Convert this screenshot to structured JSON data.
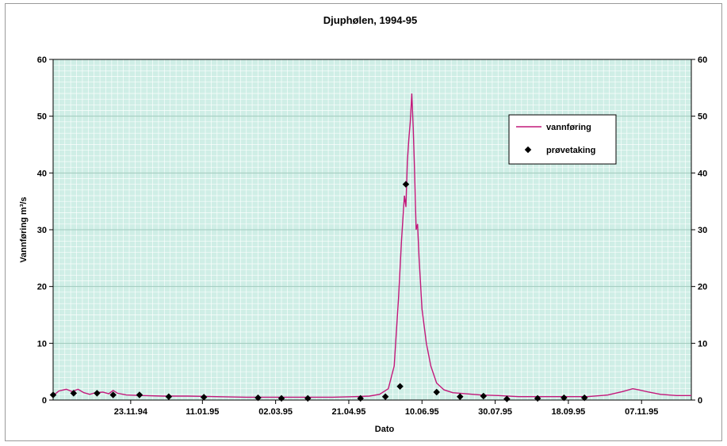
{
  "chart_data": {
    "type": "line",
    "title": "Djuphølen, 1994-95",
    "xlabel": "Dato",
    "ylabel": "Vannføring m³/s",
    "ylim": [
      0,
      60
    ],
    "yticks": [
      "0",
      "10",
      "20",
      "30",
      "40",
      "50",
      "60"
    ],
    "xticks": [
      "23.11.94",
      "11.01.95",
      "02.03.95",
      "21.04.95",
      "10.06.95",
      "30.07.95",
      "18.09.95",
      "07.11.95"
    ],
    "xrange": [
      "01.10.94",
      "11.12.95"
    ],
    "grid": true,
    "legend_position": "top-right",
    "colors": {
      "line": "#c2187a",
      "plot_bg": "#cfeee6",
      "marker": "#000000"
    },
    "series": [
      {
        "name": "vannføring",
        "style": "line",
        "points": [
          [
            "01.10.94",
            0.8
          ],
          [
            "05.10.94",
            1.6
          ],
          [
            "10.10.94",
            1.9
          ],
          [
            "14.10.94",
            1.5
          ],
          [
            "18.10.94",
            1.9
          ],
          [
            "22.10.94",
            1.3
          ],
          [
            "26.10.94",
            1.0
          ],
          [
            "30.10.94",
            1.3
          ],
          [
            "04.11.94",
            1.4
          ],
          [
            "08.11.94",
            1.1
          ],
          [
            "11.11.94",
            1.7
          ],
          [
            "14.11.94",
            1.2
          ],
          [
            "20.11.94",
            0.9
          ],
          [
            "01.12.94",
            0.8
          ],
          [
            "15.12.94",
            0.7
          ],
          [
            "01.01.95",
            0.7
          ],
          [
            "20.01.95",
            0.6
          ],
          [
            "10.02.95",
            0.5
          ],
          [
            "01.03.95",
            0.5
          ],
          [
            "20.03.95",
            0.5
          ],
          [
            "10.04.95",
            0.5
          ],
          [
            "25.04.95",
            0.6
          ],
          [
            "05.05.95",
            0.7
          ],
          [
            "12.05.95",
            1.0
          ],
          [
            "18.05.95",
            2.0
          ],
          [
            "22.05.95",
            6.0
          ],
          [
            "25.05.95",
            18.0
          ],
          [
            "27.05.95",
            28.0
          ],
          [
            "29.05.95",
            36.0
          ],
          [
            "30.05.95",
            34.0
          ],
          [
            "31.05.95",
            42.0
          ],
          [
            "01.06.95",
            46.0
          ],
          [
            "02.06.95",
            49.0
          ],
          [
            "03.06.95",
            54.0
          ],
          [
            "04.06.95",
            48.0
          ],
          [
            "05.06.95",
            40.0
          ],
          [
            "06.06.95",
            30.0
          ],
          [
            "07.06.95",
            31.0
          ],
          [
            "08.06.95",
            25.0
          ],
          [
            "10.06.95",
            16.0
          ],
          [
            "13.06.95",
            10.0
          ],
          [
            "16.06.95",
            6.0
          ],
          [
            "20.06.95",
            3.0
          ],
          [
            "25.06.95",
            1.8
          ],
          [
            "01.07.95",
            1.3
          ],
          [
            "10.07.95",
            1.1
          ],
          [
            "20.07.95",
            0.9
          ],
          [
            "01.08.95",
            0.8
          ],
          [
            "15.08.95",
            0.6
          ],
          [
            "01.09.95",
            0.6
          ],
          [
            "15.09.95",
            0.6
          ],
          [
            "01.10.95",
            0.6
          ],
          [
            "15.10.95",
            0.9
          ],
          [
            "25.10.95",
            1.5
          ],
          [
            "01.11.95",
            2.0
          ],
          [
            "05.11.95",
            1.8
          ],
          [
            "12.11.95",
            1.4
          ],
          [
            "20.11.95",
            1.0
          ],
          [
            "01.12.95",
            0.8
          ],
          [
            "11.12.95",
            0.8
          ]
        ]
      },
      {
        "name": "prøvetaking",
        "style": "marker",
        "points": [
          [
            "01.10.94",
            0.9
          ],
          [
            "15.10.94",
            1.2
          ],
          [
            "31.10.94",
            1.2
          ],
          [
            "11.11.94",
            0.9
          ],
          [
            "29.11.94",
            0.9
          ],
          [
            "19.12.94",
            0.6
          ],
          [
            "12.01.95",
            0.5
          ],
          [
            "18.02.95",
            0.4
          ],
          [
            "06.03.95",
            0.3
          ],
          [
            "24.03.95",
            0.3
          ],
          [
            "29.04.95",
            0.3
          ],
          [
            "16.05.95",
            0.6
          ],
          [
            "26.05.95",
            2.4
          ],
          [
            "30.05.95",
            38.0
          ],
          [
            "20.06.95",
            1.4
          ],
          [
            "06.07.95",
            0.6
          ],
          [
            "22.07.95",
            0.7
          ],
          [
            "07.08.95",
            0.2
          ],
          [
            "28.08.95",
            0.3
          ],
          [
            "15.09.95",
            0.4
          ],
          [
            "29.09.95",
            0.4
          ]
        ]
      }
    ]
  }
}
